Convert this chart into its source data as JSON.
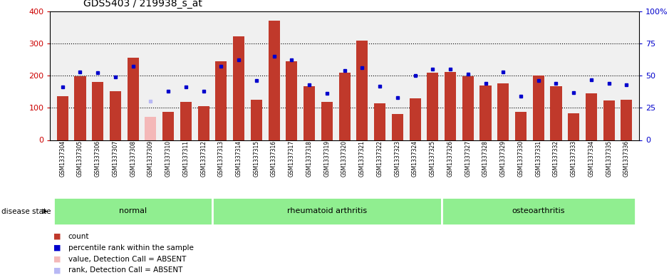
{
  "title": "GDS5403 / 219938_s_at",
  "samples": [
    "GSM1337304",
    "GSM1337305",
    "GSM1337306",
    "GSM1337307",
    "GSM1337308",
    "GSM1337309",
    "GSM1337310",
    "GSM1337311",
    "GSM1337312",
    "GSM1337313",
    "GSM1337314",
    "GSM1337315",
    "GSM1337316",
    "GSM1337317",
    "GSM1337318",
    "GSM1337319",
    "GSM1337320",
    "GSM1337321",
    "GSM1337322",
    "GSM1337323",
    "GSM1337324",
    "GSM1337325",
    "GSM1337326",
    "GSM1337327",
    "GSM1337328",
    "GSM1337329",
    "GSM1337330",
    "GSM1337331",
    "GSM1337332",
    "GSM1337333",
    "GSM1337334",
    "GSM1337335",
    "GSM1337336"
  ],
  "counts": [
    135,
    197,
    180,
    152,
    255,
    72,
    87,
    119,
    106,
    244,
    323,
    125,
    370,
    245,
    168,
    119,
    210,
    308,
    115,
    80,
    130,
    209,
    211,
    198,
    170,
    175,
    88,
    200,
    168,
    83,
    145,
    122,
    125
  ],
  "absent_mask": [
    false,
    false,
    false,
    false,
    false,
    true,
    false,
    false,
    false,
    false,
    false,
    false,
    false,
    false,
    false,
    false,
    false,
    false,
    false,
    false,
    false,
    false,
    false,
    false,
    false,
    false,
    false,
    false,
    false,
    false,
    false,
    false,
    false
  ],
  "percentile_ranks": [
    41,
    53,
    52,
    49,
    57,
    30,
    38,
    41,
    38,
    57,
    62,
    46,
    65,
    62,
    43,
    36,
    54,
    56,
    42,
    33,
    50,
    55,
    55,
    51,
    44,
    53,
    34,
    46,
    44,
    37,
    47,
    44,
    43
  ],
  "absent_rank_mask": [
    false,
    false,
    false,
    false,
    false,
    true,
    false,
    false,
    false,
    false,
    false,
    false,
    false,
    false,
    false,
    false,
    false,
    false,
    false,
    false,
    false,
    false,
    false,
    false,
    false,
    false,
    false,
    false,
    false,
    false,
    false,
    false,
    false
  ],
  "groups": [
    {
      "label": "normal",
      "start": 0,
      "end": 9
    },
    {
      "label": "rheumatoid arthritis",
      "start": 9,
      "end": 22
    },
    {
      "label": "osteoarthritis",
      "start": 22,
      "end": 33
    }
  ],
  "bar_color": "#c0392b",
  "absent_bar_color": "#f4b8b8",
  "dot_color": "#0000cc",
  "absent_dot_color": "#b8b8f4",
  "ylim_left": [
    0,
    400
  ],
  "ylim_right": [
    0,
    100
  ],
  "yticks_left": [
    0,
    100,
    200,
    300,
    400
  ],
  "yticks_right": [
    0,
    25,
    50,
    75,
    100
  ],
  "title_fontsize": 10,
  "axis_label_color_left": "#cc0000",
  "axis_label_color_right": "#0000cc",
  "bg_color": "#f0f0f0"
}
